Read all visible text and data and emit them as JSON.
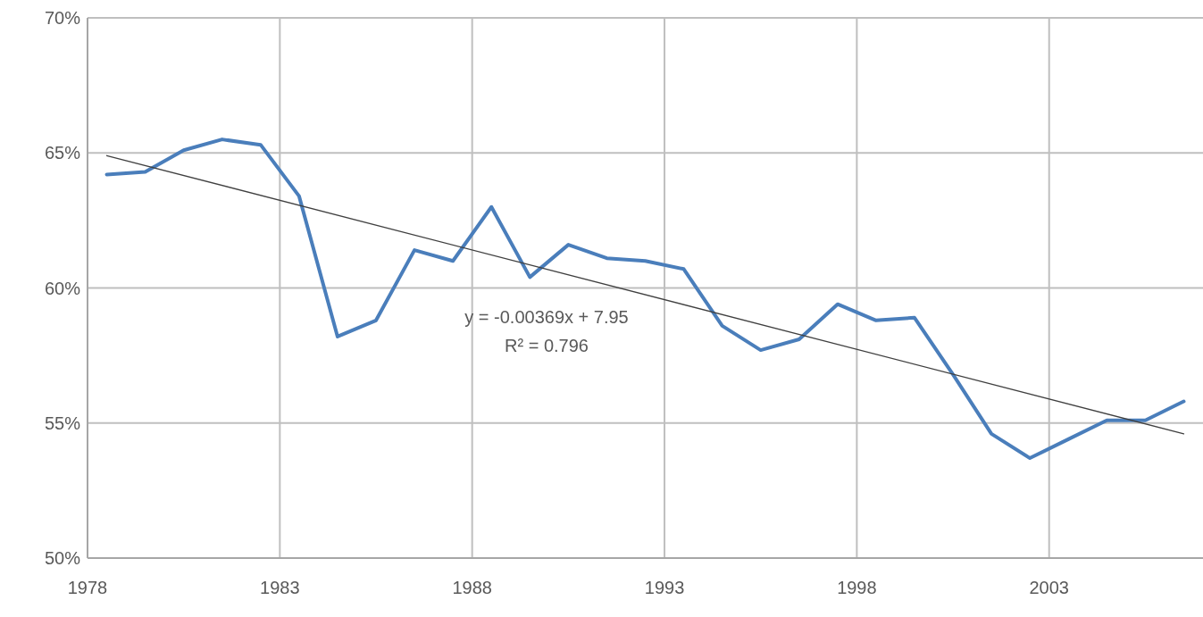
{
  "chart_data": {
    "type": "line",
    "xlim": [
      1978,
      2007
    ],
    "xticks": [
      1978,
      1983,
      1988,
      1993,
      1998,
      2003
    ],
    "ylim": [
      50,
      70
    ],
    "yticks": [
      {
        "value": 50,
        "label": "50%"
      },
      {
        "value": 55,
        "label": "55%"
      },
      {
        "value": 60,
        "label": "60%"
      },
      {
        "value": 65,
        "label": "65%"
      },
      {
        "value": 70,
        "label": "70%"
      }
    ],
    "grid": true,
    "line_style": "solid",
    "series": [
      {
        "color": "#4a7ebb",
        "x": [
          1978.5,
          1979.5,
          1980.5,
          1981.5,
          1982.5,
          1983.5,
          1984.5,
          1985.5,
          1986.5,
          1987.5,
          1988.5,
          1989.5,
          1990.5,
          1991.5,
          1992.5,
          1993.5,
          1994.5,
          1995.5,
          1996.5,
          1997.5,
          1998.5,
          1999.5,
          2000.5,
          2001.5,
          2002.5,
          2003.5,
          2004.5,
          2005.5,
          2006.5
        ],
        "values": [
          64.2,
          64.3,
          65.1,
          65.5,
          65.3,
          63.4,
          58.2,
          58.8,
          61.4,
          61.0,
          63.0,
          60.4,
          61.6,
          61.1,
          61.0,
          60.7,
          58.6,
          57.7,
          58.1,
          59.4,
          58.8,
          58.9,
          56.8,
          54.6,
          53.7,
          54.4,
          55.1,
          55.1,
          55.8
        ]
      },
      {
        "type": "line",
        "color": "#404040",
        "x": [
          1978.5,
          2006.5
        ],
        "values": [
          64.9,
          54.6
        ]
      }
    ],
    "annotations": [
      "y = -0.00369x + 7.95",
      "R² = 0.796"
    ]
  }
}
